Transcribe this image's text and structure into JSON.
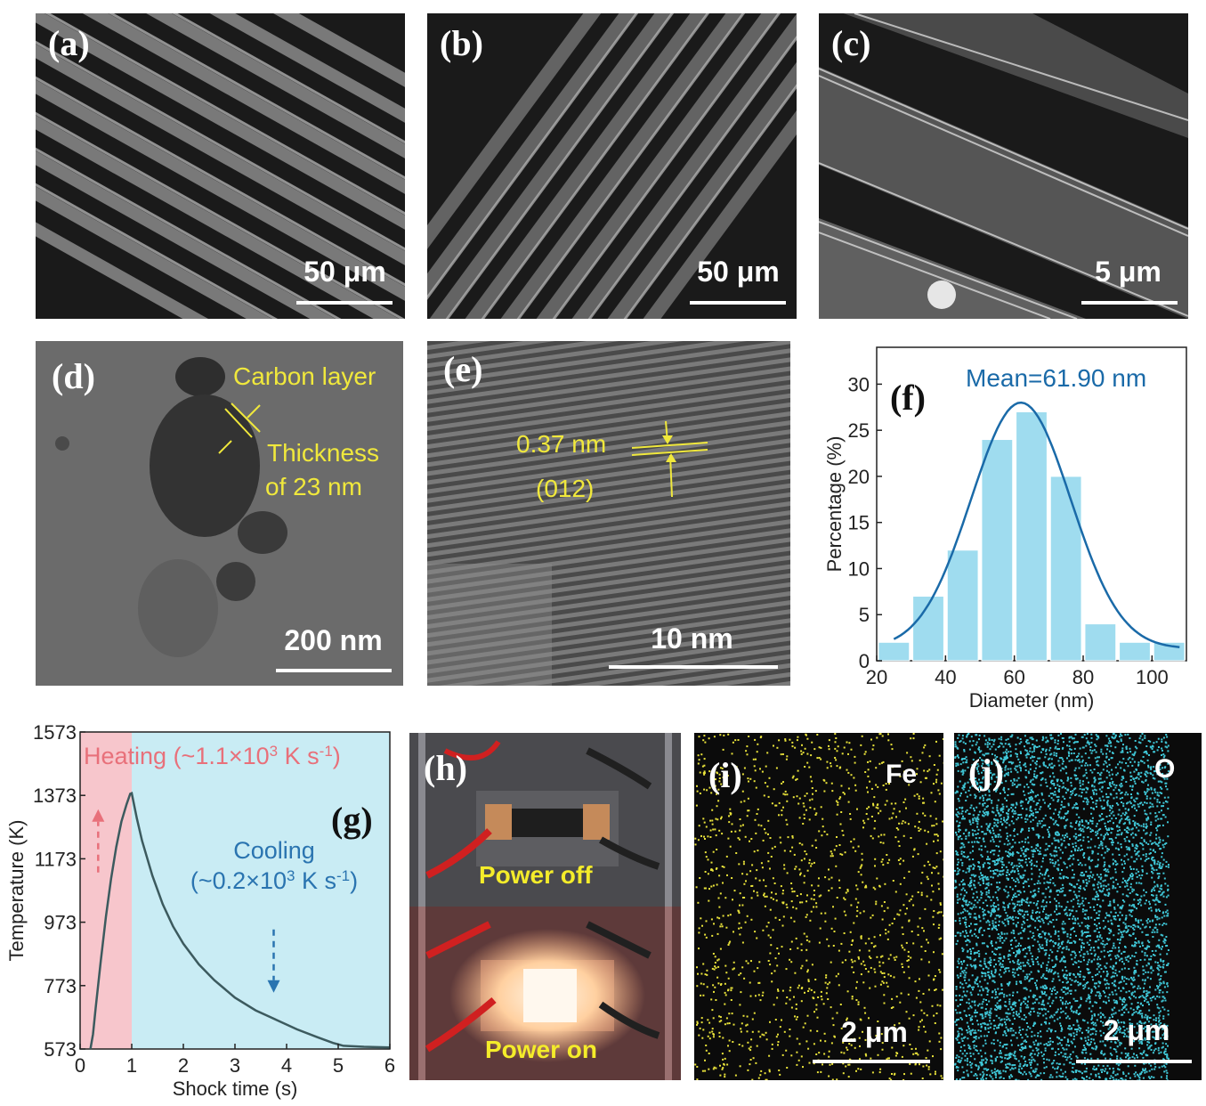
{
  "panels": {
    "a": {
      "label": "(a)",
      "scale": "50 μm"
    },
    "b": {
      "label": "(b)",
      "scale": "50 μm"
    },
    "c": {
      "label": "(c)",
      "scale": "5 μm"
    },
    "d": {
      "label": "(d)",
      "scale": "200 nm",
      "annotations": {
        "carbon": "Carbon layer",
        "thickness1": "Thickness",
        "thickness2": "of 23 nm"
      }
    },
    "e": {
      "label": "(e)",
      "scale": "10 nm",
      "annotations": {
        "spacing": "0.37 nm",
        "plane": "(012)"
      }
    },
    "h": {
      "label": "(h)",
      "power_off": "Power off",
      "power_on": "Power on"
    },
    "i": {
      "label": "(i)",
      "element": "Fe",
      "scale": "2 μm",
      "color": "#e8e23a"
    },
    "j": {
      "label": "(j)",
      "element": "O",
      "scale": "2 μm",
      "color": "#3fc6d6"
    }
  },
  "chart_data": [
    {
      "panel": "(f)",
      "type": "bar",
      "annotation": "Mean=61.90 nm",
      "xlabel": "Diameter (nm)",
      "ylabel": "Percentage (%)",
      "xlim": [
        20,
        110
      ],
      "ylim": [
        0,
        34
      ],
      "xticks": [
        20,
        40,
        60,
        80,
        100
      ],
      "yticks": [
        0,
        5,
        10,
        15,
        20,
        25,
        30
      ],
      "bin_centers": [
        25,
        35,
        45,
        55,
        65,
        75,
        85,
        95,
        105
      ],
      "values": [
        2,
        7,
        12,
        24,
        27,
        20,
        4,
        2,
        2
      ],
      "fit": {
        "type": "gaussian",
        "mean": 61.9,
        "sigma": 14.5,
        "peak": 28,
        "offset": 1.3
      },
      "bar_color": "#9fdcef",
      "line_color": "#1a6aa8"
    },
    {
      "panel": "(g)",
      "type": "line",
      "xlabel": "Shock time (s)",
      "ylabel": "Temperature (K)",
      "xlim": [
        0,
        6
      ],
      "ylim": [
        573,
        1573
      ],
      "xticks": [
        0,
        1,
        2,
        3,
        4,
        5,
        6
      ],
      "yticks": [
        573,
        773,
        973,
        1173,
        1373,
        1573
      ],
      "heating_label_prefix": "Heating (~1.1×10",
      "heating_label_sup1": "3",
      "heating_label_mid": " K s",
      "heating_label_sup2": "-1",
      "heating_label_suffix": ")",
      "cooling_label_line1": "Cooling",
      "cooling_label_prefix": "(~0.2×10",
      "cooling_label_sup1": "3",
      "cooling_label_mid": " K s",
      "cooling_label_sup2": "-1",
      "cooling_label_suffix": ")",
      "heating_region": [
        0,
        1
      ],
      "cooling_region": [
        1,
        6
      ],
      "heating_color": "#f7c6cc",
      "cooling_color": "#c9ecf4",
      "series": [
        {
          "x": [
            0.2,
            0.25,
            0.3,
            0.4,
            0.5,
            0.6,
            0.7,
            0.8,
            0.9,
            0.97,
            1.0,
            1.1,
            1.2,
            1.4,
            1.6,
            1.8,
            2.0,
            2.3,
            2.6,
            3.0,
            3.4,
            3.8,
            4.2,
            4.6,
            4.9,
            5.1,
            5.5,
            6.0
          ],
          "y": [
            573,
            620,
            700,
            850,
            990,
            1110,
            1210,
            1290,
            1345,
            1378,
            1380,
            1300,
            1230,
            1120,
            1030,
            960,
            905,
            840,
            790,
            735,
            695,
            665,
            635,
            610,
            592,
            583,
            580,
            578
          ]
        }
      ],
      "line_color": "#3c5a5e"
    }
  ]
}
